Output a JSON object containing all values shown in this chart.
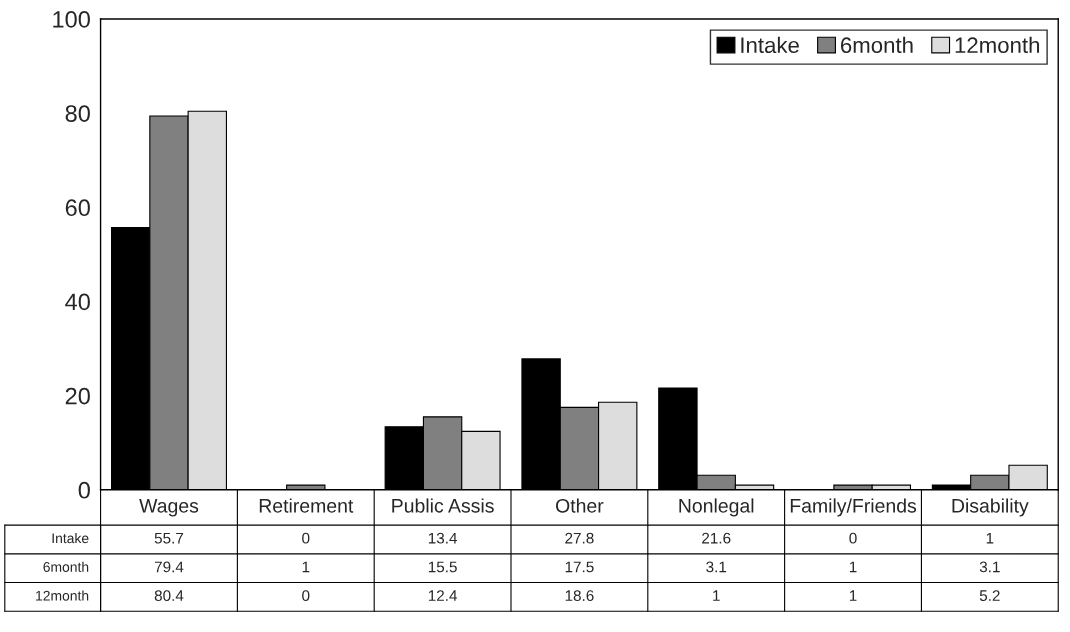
{
  "chart_data": {
    "type": "bar",
    "categories": [
      "Wages",
      "Retirement",
      "Public Assis",
      "Other",
      "Nonlegal",
      "Family/Friends",
      "Disability"
    ],
    "series": [
      {
        "name": "Intake",
        "color": "#000000",
        "values": [
          55.7,
          0,
          13.4,
          27.8,
          21.6,
          0,
          1
        ]
      },
      {
        "name": "6month",
        "color": "#808080",
        "values": [
          79.4,
          1,
          15.5,
          17.5,
          3.1,
          1,
          3.1
        ]
      },
      {
        "name": "12month",
        "color": "#dddddd",
        "values": [
          80.4,
          0,
          12.4,
          18.6,
          1,
          1,
          5.2
        ]
      }
    ],
    "ylim": [
      0,
      100
    ],
    "yticks": [
      0,
      20,
      40,
      60,
      80,
      100
    ],
    "grid": false,
    "legend": "top right",
    "data_labels": true
  }
}
